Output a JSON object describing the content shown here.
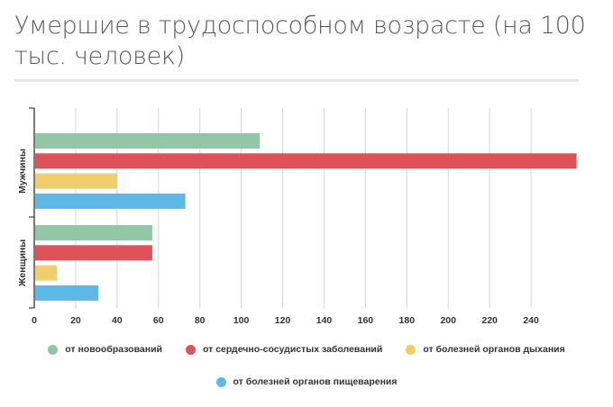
{
  "title": "Умершие в трудоспособном возрасте (на 100 тыс. человек)",
  "chart_data": {
    "type": "bar",
    "orientation": "horizontal",
    "title": "Умершие в трудоспособном возрасте (на 100 тыс. человек)",
    "categories": [
      "Мужчины",
      "Женщины"
    ],
    "series": [
      {
        "name": "от новообразований",
        "color": "#93c6a4",
        "values": [
          109,
          57
        ]
      },
      {
        "name": "от сердечно-сосудистых заболеваний",
        "color": "#de5359",
        "values": [
          262,
          57
        ]
      },
      {
        "name": "от болезней органов дыхания",
        "color": "#f2cd6b",
        "values": [
          40,
          11
        ]
      },
      {
        "name": "от болезней органов пищеварения",
        "color": "#5cb9e7",
        "values": [
          73,
          31
        ]
      }
    ],
    "xlim": [
      0,
      260
    ],
    "xticks": [
      "0",
      "20",
      "40",
      "60",
      "80",
      "100",
      "120",
      "140",
      "160",
      "180",
      "200",
      "220",
      "240"
    ],
    "grid": true,
    "legend_position": "bottom",
    "xlabel": "",
    "ylabel": ""
  }
}
